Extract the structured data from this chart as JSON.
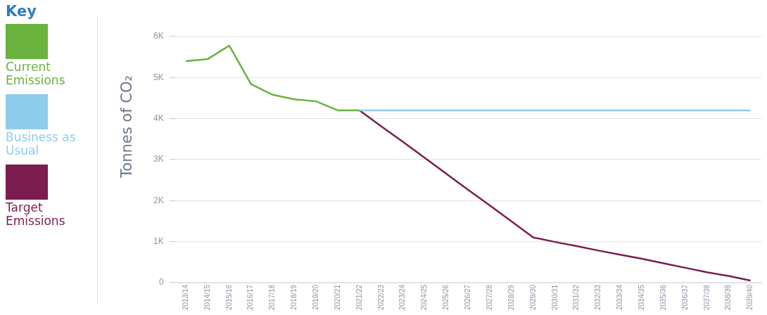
{
  "chart_data": {
    "type": "line",
    "legend_title": "Key",
    "ylabel": "Tonnes of CO₂",
    "categories": [
      "2013/14",
      "2014/15",
      "2015/16",
      "2016/17",
      "2017/18",
      "2018/19",
      "2019/20",
      "2020/21",
      "2021/22",
      "2022/23",
      "2023/24",
      "2024/25",
      "2025/26",
      "2026/27",
      "2027/28",
      "2028/29",
      "2029/30",
      "2030/31",
      "2031/32",
      "2032/33",
      "2033/34",
      "2034/35",
      "2035/36",
      "2036/37",
      "2037/38",
      "2038/39",
      "2039/40"
    ],
    "series": [
      {
        "name": "Current Emissions",
        "color": "#6ab23e",
        "values": [
          5400,
          5450,
          5780,
          4840,
          4580,
          4470,
          4420,
          4200,
          4200,
          null,
          null,
          null,
          null,
          null,
          null,
          null,
          null,
          null,
          null,
          null,
          null,
          null,
          null,
          null,
          null,
          null,
          null
        ]
      },
      {
        "name": "Business as Usual",
        "color": "#8ecdee",
        "values": [
          null,
          null,
          null,
          null,
          null,
          null,
          null,
          null,
          4200,
          4200,
          4200,
          4200,
          4200,
          4200,
          4200,
          4200,
          4200,
          4200,
          4200,
          4200,
          4200,
          4200,
          4200,
          4200,
          4200,
          4200,
          4200
        ]
      },
      {
        "name": "Target Emissions",
        "color": "#7b1d4e",
        "values": [
          null,
          null,
          null,
          null,
          null,
          null,
          null,
          null,
          4200,
          3810,
          3430,
          3040,
          2650,
          2260,
          1880,
          1490,
          1100,
          990,
          890,
          780,
          680,
          580,
          470,
          360,
          250,
          160,
          50
        ]
      }
    ],
    "ylim": [
      0,
      6000
    ],
    "yticks": [
      {
        "value": 0,
        "label": "0"
      },
      {
        "value": 1000,
        "label": "1K"
      },
      {
        "value": 2000,
        "label": "2K"
      },
      {
        "value": 3000,
        "label": "3K"
      },
      {
        "value": 4000,
        "label": "4K"
      },
      {
        "value": 5000,
        "label": "5K"
      },
      {
        "value": 6000,
        "label": "6K"
      }
    ],
    "grid": "y",
    "legend": "left",
    "marker": "none",
    "line_style": "solid"
  }
}
